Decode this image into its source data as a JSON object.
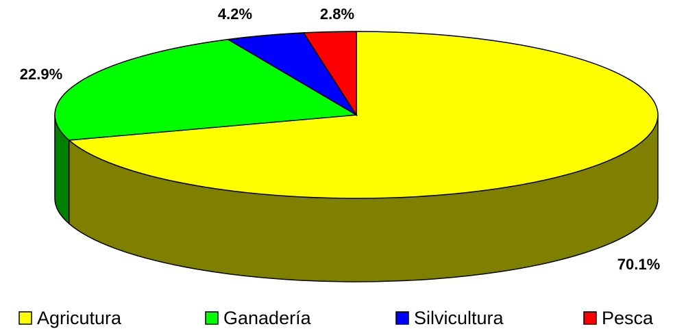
{
  "chart_data": {
    "type": "pie3d",
    "categories": [
      "Agricutura",
      "Ganadería",
      "Silvicultura",
      "Pesca"
    ],
    "values": [
      70.1,
      22.9,
      4.2,
      2.8
    ],
    "value_labels": [
      "70.1%",
      "22.9%",
      "4.2%",
      "2.8%"
    ],
    "colors": [
      "#ffff00",
      "#00ff00",
      "#0000ff",
      "#ff0000"
    ],
    "legend": "bottom"
  }
}
